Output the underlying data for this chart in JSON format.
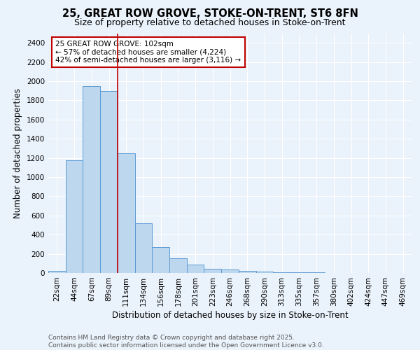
{
  "title_line1": "25, GREAT ROW GROVE, STOKE-ON-TRENT, ST6 8FN",
  "title_line2": "Size of property relative to detached houses in Stoke-on-Trent",
  "xlabel": "Distribution of detached houses by size in Stoke-on-Trent",
  "ylabel": "Number of detached properties",
  "categories": [
    "22sqm",
    "44sqm",
    "67sqm",
    "89sqm",
    "111sqm",
    "134sqm",
    "156sqm",
    "178sqm",
    "201sqm",
    "223sqm",
    "246sqm",
    "268sqm",
    "290sqm",
    "313sqm",
    "335sqm",
    "357sqm",
    "380sqm",
    "402sqm",
    "424sqm",
    "447sqm",
    "469sqm"
  ],
  "values": [
    25,
    1175,
    1950,
    1900,
    1250,
    520,
    270,
    155,
    90,
    45,
    35,
    20,
    15,
    10,
    5,
    5,
    3,
    3,
    2,
    2,
    2
  ],
  "bar_color": "#BDD7EE",
  "bar_edge_color": "#5B9BD5",
  "marker_color": "#C00000",
  "annotation_text": "25 GREAT ROW GROVE: 102sqm\n← 57% of detached houses are smaller (4,224)\n42% of semi-detached houses are larger (3,116) →",
  "annotation_box_color": "#FFFFFF",
  "annotation_box_edge": "#C00000",
  "ylim": [
    0,
    2500
  ],
  "yticks": [
    0,
    200,
    400,
    600,
    800,
    1000,
    1200,
    1400,
    1600,
    1800,
    2000,
    2200,
    2400
  ],
  "footer_line1": "Contains HM Land Registry data © Crown copyright and database right 2025.",
  "footer_line2": "Contains public sector information licensed under the Open Government Licence v3.0.",
  "bg_color": "#EAF2FB",
  "grid_color": "#FFFFFF",
  "title_fontsize": 10.5,
  "subtitle_fontsize": 9,
  "axis_label_fontsize": 8.5,
  "tick_fontsize": 7.5,
  "annotation_fontsize": 7.5,
  "footer_fontsize": 6.5
}
